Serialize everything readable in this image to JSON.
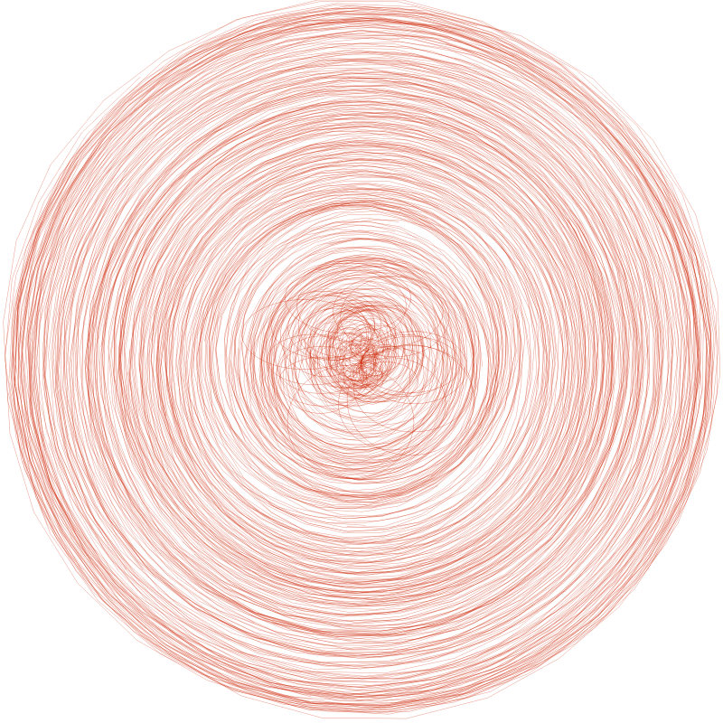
{
  "artwork": {
    "subject": "spiral-scribble",
    "background_color": "#ffffff",
    "stroke_color": "#cc2200",
    "stroke_opacity": 0.45,
    "style": "thin overlapping looping lines spiraling outward from the center"
  }
}
